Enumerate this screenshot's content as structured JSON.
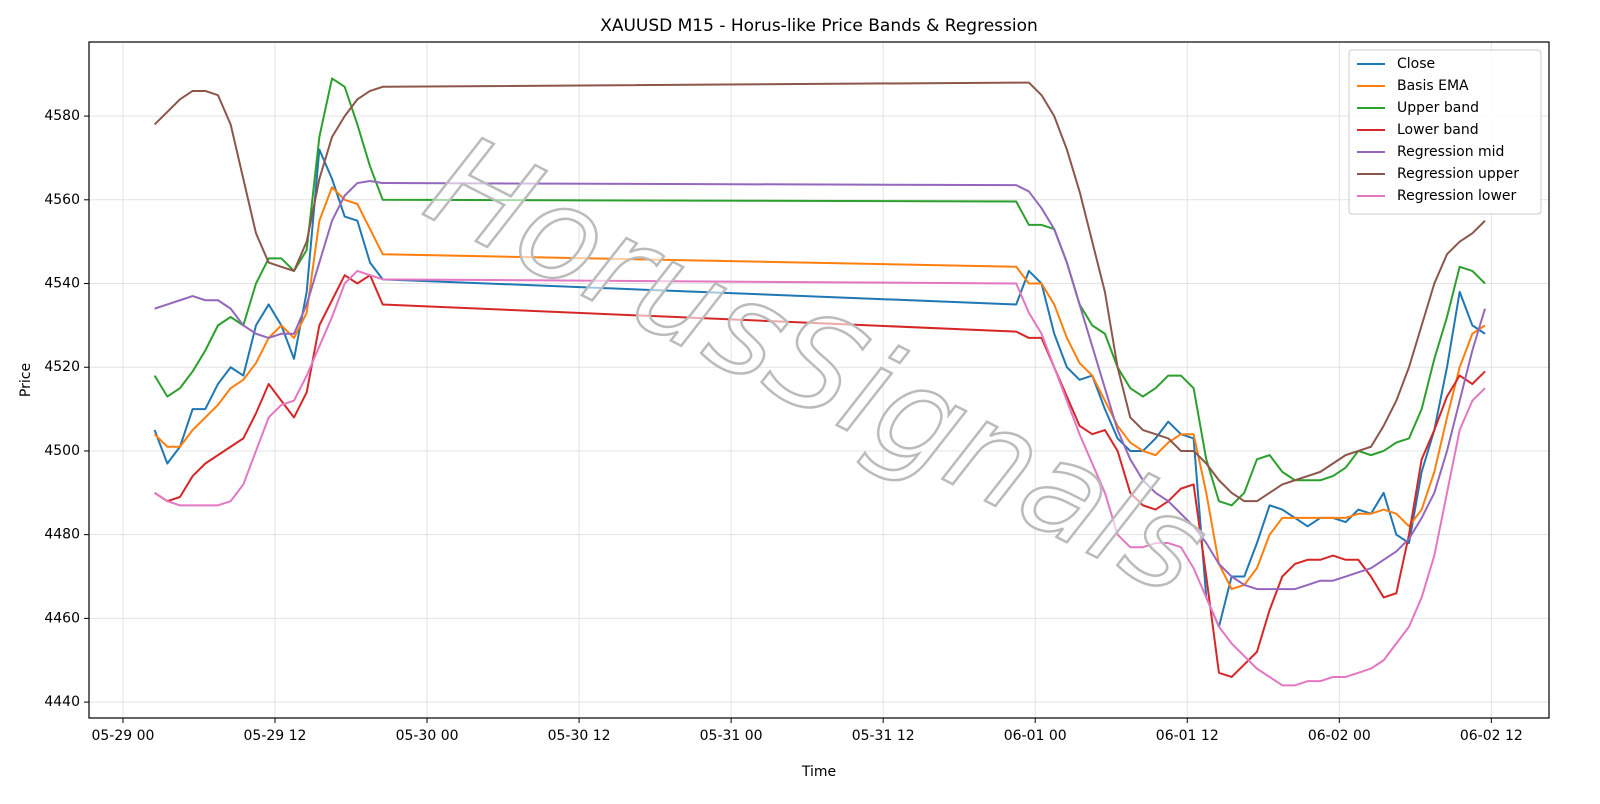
{
  "chart_data": {
    "type": "line",
    "title": "XAUUSD M15 - Horus-like Price Bands & Regression",
    "x_label": "Time",
    "y_label": "Price",
    "watermark": "HorusSignals",
    "grid": true,
    "legend": "upper right",
    "xlim": [
      -2.68,
      112.55
    ],
    "ylim": [
      4436.2,
      4597.7
    ],
    "xticks": [
      {
        "value": 0,
        "label": "05-29 00"
      },
      {
        "value": 12,
        "label": "05-29 12"
      },
      {
        "value": 24,
        "label": "05-30 00"
      },
      {
        "value": 36,
        "label": "05-30 12"
      },
      {
        "value": 48,
        "label": "05-31 00"
      },
      {
        "value": 60,
        "label": "05-31 12"
      },
      {
        "value": 72,
        "label": "06-01 00"
      },
      {
        "value": 84,
        "label": "06-01 12"
      },
      {
        "value": 96,
        "label": "06-02 00"
      },
      {
        "value": 108,
        "label": "06-02 12"
      }
    ],
    "yticks": [
      4440,
      4460,
      4480,
      4500,
      4520,
      4540,
      4560,
      4580
    ],
    "x": [
      2.5,
      3.5,
      4.5,
      5.5,
      6.5,
      7.5,
      8.5,
      9.5,
      10.5,
      11.5,
      12.5,
      13.5,
      14.5,
      15.5,
      16.5,
      17.5,
      18.5,
      19.5,
      20.5,
      70.5,
      71.5,
      72.5,
      73.5,
      74.5,
      75.5,
      76.5,
      77.5,
      78.5,
      79.5,
      80.5,
      81.5,
      82.5,
      83.5,
      84.5,
      85.5,
      86.5,
      87.5,
      88.5,
      89.5,
      90.5,
      91.5,
      92.5,
      93.5,
      94.5,
      95.5,
      96.5,
      97.5,
      98.5,
      99.5,
      100.5,
      101.5,
      102.5,
      103.5,
      104.5,
      105.5,
      106.5,
      107.5
    ],
    "series": [
      {
        "name": "Close",
        "color": "#1f77b4",
        "values": [
          4505,
          4497,
          4501,
          4510,
          4510,
          4516,
          4520,
          4518,
          4530,
          4535,
          4530,
          4522,
          4538,
          4572,
          4565,
          4556,
          4555,
          4545,
          4541,
          4535,
          4543,
          4540,
          4528,
          4520,
          4517,
          4518,
          4510,
          4503,
          4500,
          4500,
          4503,
          4507,
          4504,
          4503,
          4465,
          4458,
          4470,
          4470,
          4478,
          4487,
          4486,
          4484,
          4482,
          4484,
          4484,
          4483,
          4486,
          4485,
          4490,
          4480,
          4478,
          4495,
          4505,
          4520,
          4538,
          4530,
          4528
        ]
      },
      {
        "name": "Basis EMA",
        "color": "#ff7f0e",
        "values": [
          4504,
          4501,
          4501,
          4505,
          4508,
          4511,
          4515,
          4517,
          4521,
          4527,
          4530,
          4527,
          4533,
          4555,
          4563,
          4560,
          4559,
          4553,
          4547,
          4544,
          4540,
          4540,
          4535,
          4527,
          4521,
          4518,
          4512,
          4506,
          4502,
          4500,
          4499,
          4502,
          4504,
          4504,
          4490,
          4473,
          4467,
          4468,
          4472,
          4480,
          4484,
          4484,
          4484,
          4484,
          4484,
          4484,
          4485,
          4485,
          4486,
          4485,
          4482,
          4486,
          4495,
          4508,
          4520,
          4528,
          4530
        ]
      },
      {
        "name": "Upper band",
        "color": "#2ca02c",
        "values": [
          4518,
          4513,
          4515,
          4519,
          4524,
          4530,
          4532,
          4530,
          4540,
          4546,
          4546,
          4543,
          4548,
          4575,
          4589,
          4587,
          4578,
          4568,
          4560,
          4559.6,
          4554,
          4554,
          4553,
          4545,
          4535,
          4530,
          4528,
          4520,
          4515,
          4513,
          4515,
          4518,
          4518,
          4515,
          4498,
          4488,
          4487,
          4490,
          4498,
          4499,
          4495,
          4493,
          4493,
          4493,
          4494,
          4496,
          4500,
          4499,
          4500,
          4502,
          4503,
          4510,
          4522,
          4532,
          4544,
          4543,
          4540
        ]
      },
      {
        "name": "Lower band",
        "color": "#d62728",
        "values": [
          4490,
          4488,
          4489,
          4494,
          4497,
          4499,
          4501,
          4503,
          4509,
          4516,
          4512,
          4508,
          4514,
          4530,
          4536,
          4542,
          4540,
          4542,
          4535,
          4528.5,
          4527,
          4527,
          4520,
          4513,
          4506,
          4504,
          4505,
          4500,
          4490,
          4487,
          4486,
          4488,
          4491,
          4492,
          4470,
          4447,
          4446,
          4449,
          4452,
          4462,
          4470,
          4473,
          4474,
          4474,
          4475,
          4474,
          4474,
          4470,
          4465,
          4466,
          4480,
          4498,
          4505,
          4513,
          4518,
          4516,
          4519
        ]
      },
      {
        "name": "Regression mid",
        "color": "#9467bd",
        "values": [
          4534,
          4535,
          4536,
          4537,
          4536,
          4536,
          4534,
          4530,
          4528,
          4527,
          4528,
          4528,
          4535,
          4545,
          4555,
          4561,
          4564,
          4564.5,
          4564,
          4563.5,
          4562,
          4558,
          4553,
          4545,
          4535,
          4525,
          4515,
          4505,
          4498,
          4493,
          4490,
          4488,
          4485,
          4482,
          4478,
          4473,
          4470,
          4468,
          4467,
          4467,
          4467,
          4467,
          4468,
          4469,
          4469,
          4470,
          4471,
          4472,
          4474,
          4476,
          4479,
          4484,
          4490,
          4500,
          4512,
          4524,
          4534
        ]
      },
      {
        "name": "Regression upper",
        "color": "#8c564b",
        "values": [
          4578,
          4581,
          4584,
          4586,
          4586,
          4585,
          4578,
          4565,
          4552,
          4545,
          4544,
          4543,
          4550,
          4565,
          4575,
          4580,
          4584,
          4586,
          4587,
          4588,
          4588,
          4585,
          4580,
          4572,
          4562,
          4550,
          4538,
          4520,
          4508,
          4505,
          4504,
          4503,
          4500,
          4500,
          4497,
          4493,
          4490,
          4488,
          4488,
          4490,
          4492,
          4493,
          4494,
          4495,
          4497,
          4499,
          4500,
          4501,
          4506,
          4512,
          4520,
          4530,
          4540,
          4547,
          4550,
          4552,
          4555
        ]
      },
      {
        "name": "Regression lower",
        "color": "#e377c2",
        "values": [
          4490,
          4488,
          4487,
          4487,
          4487,
          4487,
          4488,
          4492,
          4500,
          4508,
          4511,
          4512,
          4518,
          4525,
          4532,
          4540,
          4543,
          4542,
          4541,
          4540,
          4533,
          4528,
          4520,
          4512,
          4504,
          4497,
          4490,
          4480,
          4477,
          4477,
          4478,
          4478,
          4477,
          4472,
          4465,
          4458,
          4454,
          4451,
          4448,
          4446,
          4444,
          4444,
          4445,
          4445,
          4446,
          4446,
          4447,
          4448,
          4450,
          4454,
          4458,
          4465,
          4475,
          4490,
          4505,
          4512,
          4515
        ]
      }
    ]
  }
}
